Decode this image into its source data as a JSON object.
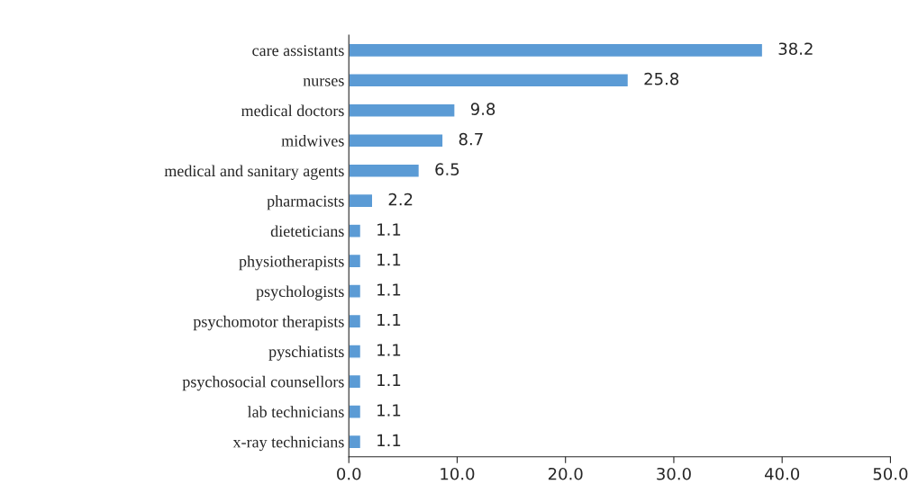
{
  "chart_data": {
    "type": "bar",
    "orientation": "horizontal",
    "categories": [
      "care assistants",
      "nurses",
      "medical doctors",
      "midwives",
      "medical and sanitary agents",
      "pharmacists",
      "dieteticians",
      "physiotherapists",
      "psychologists",
      "psychomotor therapists",
      "pyschiatists",
      "psychosocial counsellors",
      "lab technicians",
      "x-ray technicians"
    ],
    "values": [
      38.2,
      25.8,
      9.8,
      8.7,
      6.5,
      2.2,
      1.1,
      1.1,
      1.1,
      1.1,
      1.1,
      1.1,
      1.1,
      1.1
    ],
    "color": "#5b9bd5",
    "xlim": [
      0,
      50
    ],
    "xticks": [
      {
        "value": 0,
        "label": "0.0"
      },
      {
        "value": 10,
        "label": "10.0"
      },
      {
        "value": 20,
        "label": "20.0"
      },
      {
        "value": 30,
        "label": "30.0"
      },
      {
        "value": 40,
        "label": "40.0"
      },
      {
        "value": 50,
        "label": "50.0"
      }
    ],
    "data_labels": true,
    "grid": false,
    "legend": false
  }
}
